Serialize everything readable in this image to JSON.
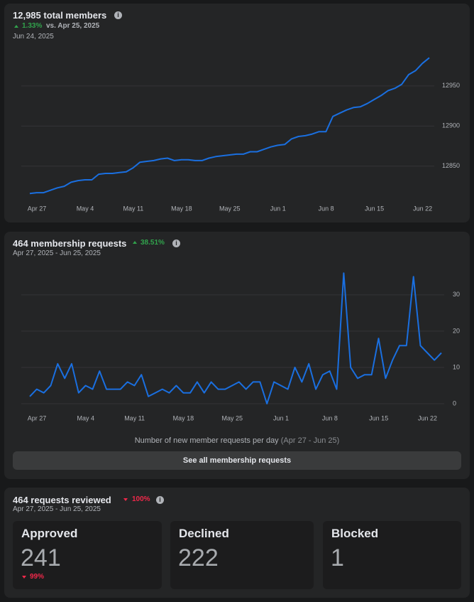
{
  "members": {
    "title": "12,985 total members",
    "change": "1.33%",
    "change_label": "vs. Apr 25, 2025",
    "date": "Jun 24, 2025"
  },
  "requests": {
    "title": "464 membership requests",
    "change": "38.51%",
    "date_range": "Apr 27, 2025 - Jun 25, 2025",
    "button": "See all membership requests"
  },
  "reviewed": {
    "title": "464 requests reviewed",
    "change": "100%",
    "date_range": "Apr 27, 2025 - Jun 25, 2025",
    "boxes": [
      {
        "label": "Approved",
        "value": 241,
        "change": "99%"
      },
      {
        "label": "Declined",
        "value": 222
      },
      {
        "label": "Blocked",
        "value": 1
      }
    ]
  },
  "chart_data": [
    {
      "type": "line",
      "color": "#1a6fe0",
      "grid": true,
      "categories": [
        "Apr 27",
        null,
        null,
        null,
        null,
        null,
        null,
        "May 4",
        null,
        null,
        null,
        null,
        null,
        null,
        "May 11",
        null,
        null,
        null,
        null,
        null,
        null,
        "May 18",
        null,
        null,
        null,
        null,
        null,
        null,
        "May 25",
        null,
        null,
        null,
        null,
        null,
        null,
        "Jun 1",
        null,
        null,
        null,
        null,
        null,
        null,
        "Jun 8",
        null,
        null,
        null,
        null,
        null,
        null,
        "Jun 15",
        null,
        null,
        null,
        null,
        null,
        null,
        "Jun 22",
        null,
        null
      ],
      "values": [
        12816,
        12817,
        12817,
        12820,
        12823,
        12825,
        12830,
        12832,
        12833,
        12833,
        12840,
        12841,
        12841,
        12842,
        12843,
        12848,
        12855,
        12856,
        12857,
        12859,
        12860,
        12857,
        12858,
        12858,
        12857,
        12857,
        12860,
        12862,
        12863,
        12864,
        12865,
        12865,
        12868,
        12868,
        12871,
        12874,
        12876,
        12877,
        12884,
        12887,
        12888,
        12890,
        12893,
        12893,
        12912,
        12916,
        12920,
        12923,
        12924,
        12928,
        12933,
        12938,
        12944,
        12947,
        12952,
        12964,
        12969,
        12978,
        12985
      ],
      "ylim": [
        12810,
        12995
      ],
      "yticks": [
        12850,
        12900,
        12950
      ]
    },
    {
      "type": "line",
      "color": "#1a6fe0",
      "grid": true,
      "x_label": "Number of new member requests per day",
      "x_label_note": "(Apr 27 - Jun 25)",
      "categories": [
        "Apr 27",
        null,
        null,
        null,
        null,
        null,
        null,
        "May 4",
        null,
        null,
        null,
        null,
        null,
        null,
        "May 11",
        null,
        null,
        null,
        null,
        null,
        null,
        "May 18",
        null,
        null,
        null,
        null,
        null,
        null,
        "May 25",
        null,
        null,
        null,
        null,
        null,
        null,
        "Jun 1",
        null,
        null,
        null,
        null,
        null,
        null,
        "Jun 8",
        null,
        null,
        null,
        null,
        null,
        null,
        "Jun 15",
        null,
        null,
        null,
        null,
        null,
        null,
        "Jun 22",
        null,
        null,
        null
      ],
      "values": [
        2,
        4,
        3,
        5,
        11,
        7,
        11,
        3,
        5,
        4,
        9,
        4,
        4,
        4,
        6,
        5,
        8,
        2,
        3,
        4,
        3,
        5,
        3,
        3,
        6,
        3,
        6,
        4,
        4,
        5,
        6,
        4,
        6,
        6,
        0,
        6,
        5,
        4,
        10,
        6,
        11,
        4,
        8,
        9,
        4,
        36,
        10,
        7,
        8,
        8,
        18,
        7,
        12,
        16,
        16,
        35,
        16,
        14,
        12,
        14
      ],
      "ylim": [
        0,
        38
      ],
      "yticks": [
        0,
        10,
        20,
        30
      ]
    }
  ]
}
